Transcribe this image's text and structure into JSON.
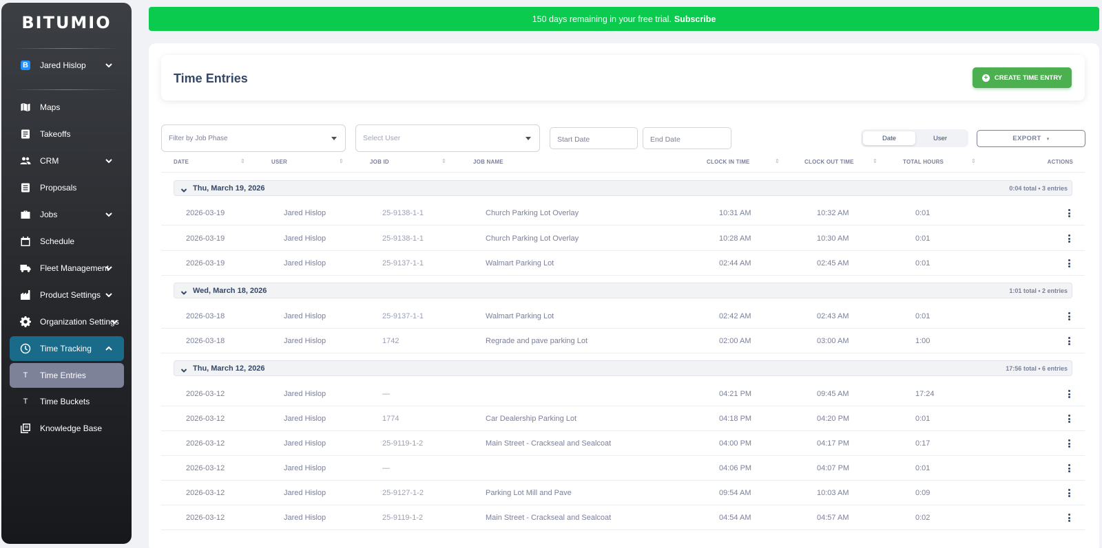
{
  "brand": {
    "name": "BITUMIO"
  },
  "sidebar": {
    "user": {
      "name": "Jared Hislop",
      "logo_letter": "B"
    },
    "items": [
      {
        "label": "Maps",
        "icon": "map-icon"
      },
      {
        "label": "Takeoffs",
        "icon": "document-icon"
      },
      {
        "label": "CRM",
        "icon": "people-icon"
      },
      {
        "label": "Proposals",
        "icon": "proposal-icon"
      },
      {
        "label": "Jobs",
        "icon": "briefcase-icon"
      },
      {
        "label": "Schedule",
        "icon": "calendar-icon"
      },
      {
        "label": "Fleet Management",
        "icon": "truck-icon"
      },
      {
        "label": "Product Settings",
        "icon": "factory-icon"
      },
      {
        "label": "Organization Settings",
        "icon": "gear-icon"
      },
      {
        "label": "Time Tracking",
        "icon": "clock-icon"
      },
      {
        "label": "Time Entries",
        "letter": "T"
      },
      {
        "label": "Time Buckets",
        "letter": "T"
      },
      {
        "label": "Knowledge Base",
        "icon": "library-icon"
      }
    ]
  },
  "trial_banner": {
    "text": "150 days remaining in your free trial.",
    "link": "Subscribe"
  },
  "page": {
    "title": "Time Entries",
    "create_label": "CREATE TIME ENTRY"
  },
  "filters": {
    "job_phase_placeholder": "Filter by Job Phase",
    "user_placeholder": "Select User",
    "start_date_placeholder": "Start Date",
    "end_date_placeholder": "End Date",
    "group_by": {
      "options": [
        "Date",
        "User"
      ],
      "selected": "Date"
    },
    "export_label": "EXPORT"
  },
  "table": {
    "columns": [
      "DATE",
      "USER",
      "JOB ID",
      "JOB NAME",
      "CLOCK IN TIME",
      "CLOCK OUT TIME",
      "TOTAL HOURS",
      "ACTIONS"
    ],
    "groups": [
      {
        "title": "Thu, March 19, 2026",
        "summary": "0:04 total • 3 entries",
        "rows": [
          {
            "date": "2026-03-19",
            "user": "Jared Hislop",
            "job_id": "25-9138-1-1",
            "job_name": "Church Parking Lot Overlay",
            "clock_in": "10:31 AM",
            "clock_out": "10:32 AM",
            "total": "0:01"
          },
          {
            "date": "2026-03-19",
            "user": "Jared Hislop",
            "job_id": "25-9138-1-1",
            "job_name": "Church Parking Lot Overlay",
            "clock_in": "10:28 AM",
            "clock_out": "10:30 AM",
            "total": "0:01"
          },
          {
            "date": "2026-03-19",
            "user": "Jared Hislop",
            "job_id": "25-9137-1-1",
            "job_name": "Walmart Parking Lot",
            "clock_in": "02:44 AM",
            "clock_out": "02:45 AM",
            "total": "0:01"
          }
        ]
      },
      {
        "title": "Wed, March 18, 2026",
        "summary": "1:01 total • 2 entries",
        "rows": [
          {
            "date": "2026-03-18",
            "user": "Jared Hislop",
            "job_id": "25-9137-1-1",
            "job_name": "Walmart Parking Lot",
            "clock_in": "02:42 AM",
            "clock_out": "02:43 AM",
            "total": "0:01"
          },
          {
            "date": "2026-03-18",
            "user": "Jared Hislop",
            "job_id": "1742",
            "job_name": "Regrade and pave parking Lot",
            "clock_in": "02:00 AM",
            "clock_out": "03:00 AM",
            "total": "1:00"
          }
        ]
      },
      {
        "title": "Thu, March 12, 2026",
        "summary": "17:56 total • 6 entries",
        "rows": [
          {
            "date": "2026-03-12",
            "user": "Jared Hislop",
            "job_id": "—",
            "job_name": "",
            "clock_in": "04:21 PM",
            "clock_out": "09:45 AM",
            "total": "17:24"
          },
          {
            "date": "2026-03-12",
            "user": "Jared Hislop",
            "job_id": "1774",
            "job_name": "Car Dealership Parking Lot",
            "clock_in": "04:18 PM",
            "clock_out": "04:20 PM",
            "total": "0:01"
          },
          {
            "date": "2026-03-12",
            "user": "Jared Hislop",
            "job_id": "25-9119-1-2",
            "job_name": "Main Street - Crackseal and Sealcoat",
            "clock_in": "04:00 PM",
            "clock_out": "04:17 PM",
            "total": "0:17"
          },
          {
            "date": "2026-03-12",
            "user": "Jared Hislop",
            "job_id": "—",
            "job_name": "",
            "clock_in": "04:06 PM",
            "clock_out": "04:07 PM",
            "total": "0:01"
          },
          {
            "date": "2026-03-12",
            "user": "Jared Hislop",
            "job_id": "25-9127-1-2",
            "job_name": "Parking Lot Mill and Pave",
            "clock_in": "09:54 AM",
            "clock_out": "10:03 AM",
            "total": "0:09"
          },
          {
            "date": "2026-03-12",
            "user": "Jared Hislop",
            "job_id": "25-9119-1-2",
            "job_name": "Main Street - Crackseal and Sealcoat",
            "clock_in": "04:54 AM",
            "clock_out": "04:57 AM",
            "total": "0:02"
          }
        ]
      }
    ]
  },
  "colors": {
    "banner": "#0bcb4e",
    "create_button": "#4caf50",
    "active_nav": "#1a6b8a",
    "active_subnav": "#7d8299"
  }
}
